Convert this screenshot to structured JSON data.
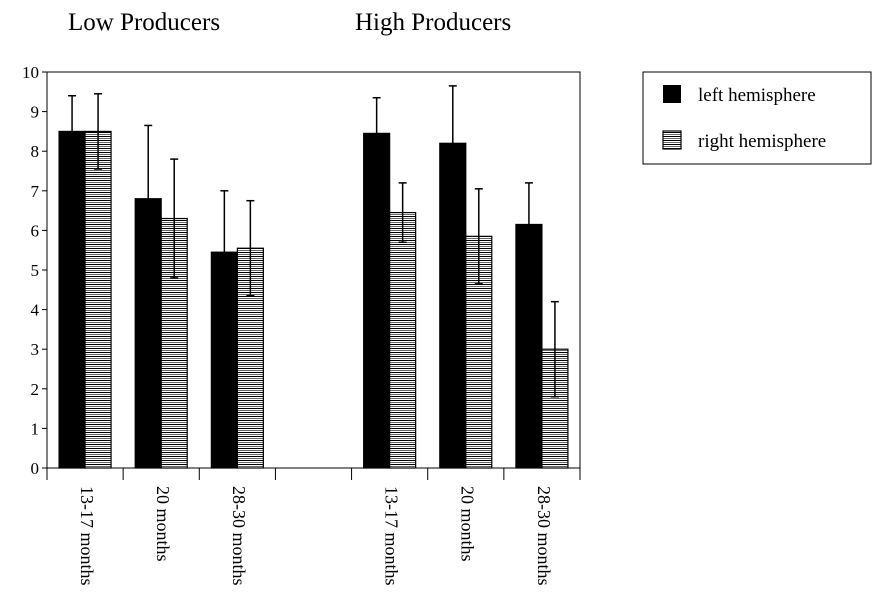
{
  "chart_data": {
    "type": "bar",
    "group_titles": [
      "Low Producers",
      "High Producers"
    ],
    "categories": [
      "13-17 months",
      "20 months",
      "28-30 months",
      "",
      "13-17 months",
      "20 months",
      "28-30 months"
    ],
    "ylim": [
      0,
      10
    ],
    "yticks": [
      "0",
      "1",
      "2",
      "3",
      "4",
      "5",
      "6",
      "7",
      "8",
      "9",
      "10"
    ],
    "grid": false,
    "legend_position": "top-right",
    "series": [
      {
        "name": "left hemisphere",
        "color": "#000000",
        "pattern": "solid",
        "values": [
          8.5,
          6.8,
          5.45,
          null,
          8.45,
          8.2,
          6.15
        ],
        "error": [
          0.9,
          1.85,
          1.55,
          null,
          0.9,
          1.45,
          1.05
        ]
      },
      {
        "name": "right hemisphere",
        "color": "#000000",
        "pattern": "horizontal-stripes",
        "values": [
          8.5,
          6.3,
          5.55,
          null,
          6.45,
          5.85,
          3.0
        ],
        "error": [
          0.95,
          1.5,
          1.2,
          null,
          0.75,
          1.2,
          1.2
        ]
      }
    ]
  }
}
